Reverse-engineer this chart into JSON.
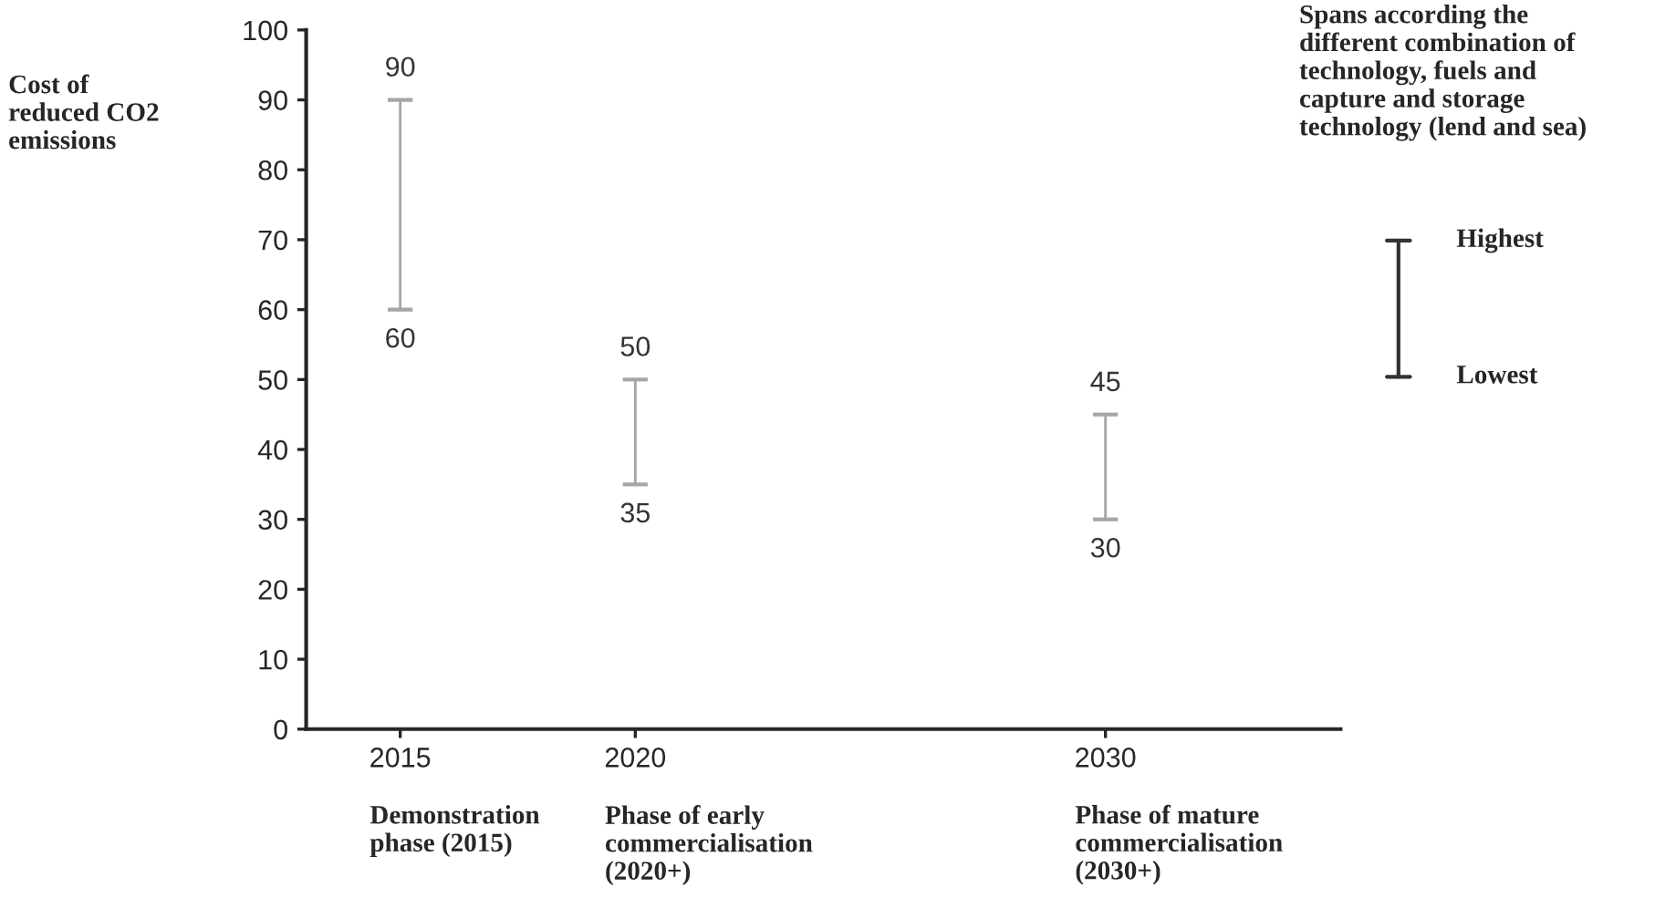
{
  "chart_data": {
    "type": "bar",
    "ylabel": "Cost of\nreduced CO2\nemissions",
    "x": [
      2015,
      2020,
      2030
    ],
    "base": [
      60,
      35,
      30
    ],
    "values": [
      30,
      15,
      15
    ],
    "color": "#a6a6a6",
    "xlim": [
      2013,
      2035
    ],
    "xticks": [
      2015,
      2020,
      2030
    ],
    "ylim": [
      0,
      100
    ],
    "yticks": [
      0,
      10,
      20,
      30,
      40,
      50,
      60,
      70,
      80,
      90,
      100
    ],
    "grid": false,
    "annotations": [
      {
        "text": "90",
        "x": 2015,
        "y": 90
      },
      {
        "text": "60",
        "x": 2015,
        "y": 60
      },
      {
        "text": "50",
        "x": 2020,
        "y": 50
      },
      {
        "text": "35",
        "x": 2020,
        "y": 35
      },
      {
        "text": "45",
        "x": 2030,
        "y": 45
      },
      {
        "text": "30",
        "x": 2030,
        "y": 30
      },
      "Demonstration\nphase (2015)",
      "Phase of early\ncommercialisation\n(2020+)",
      "Phase of mature\ncommercialisation\n(2030+)",
      "Spans according the\ndifferent combination of\ntechnology, fuels and\ncapture and storage\ntechnology (lend and sea)",
      "Highest",
      "Lowest"
    ]
  }
}
